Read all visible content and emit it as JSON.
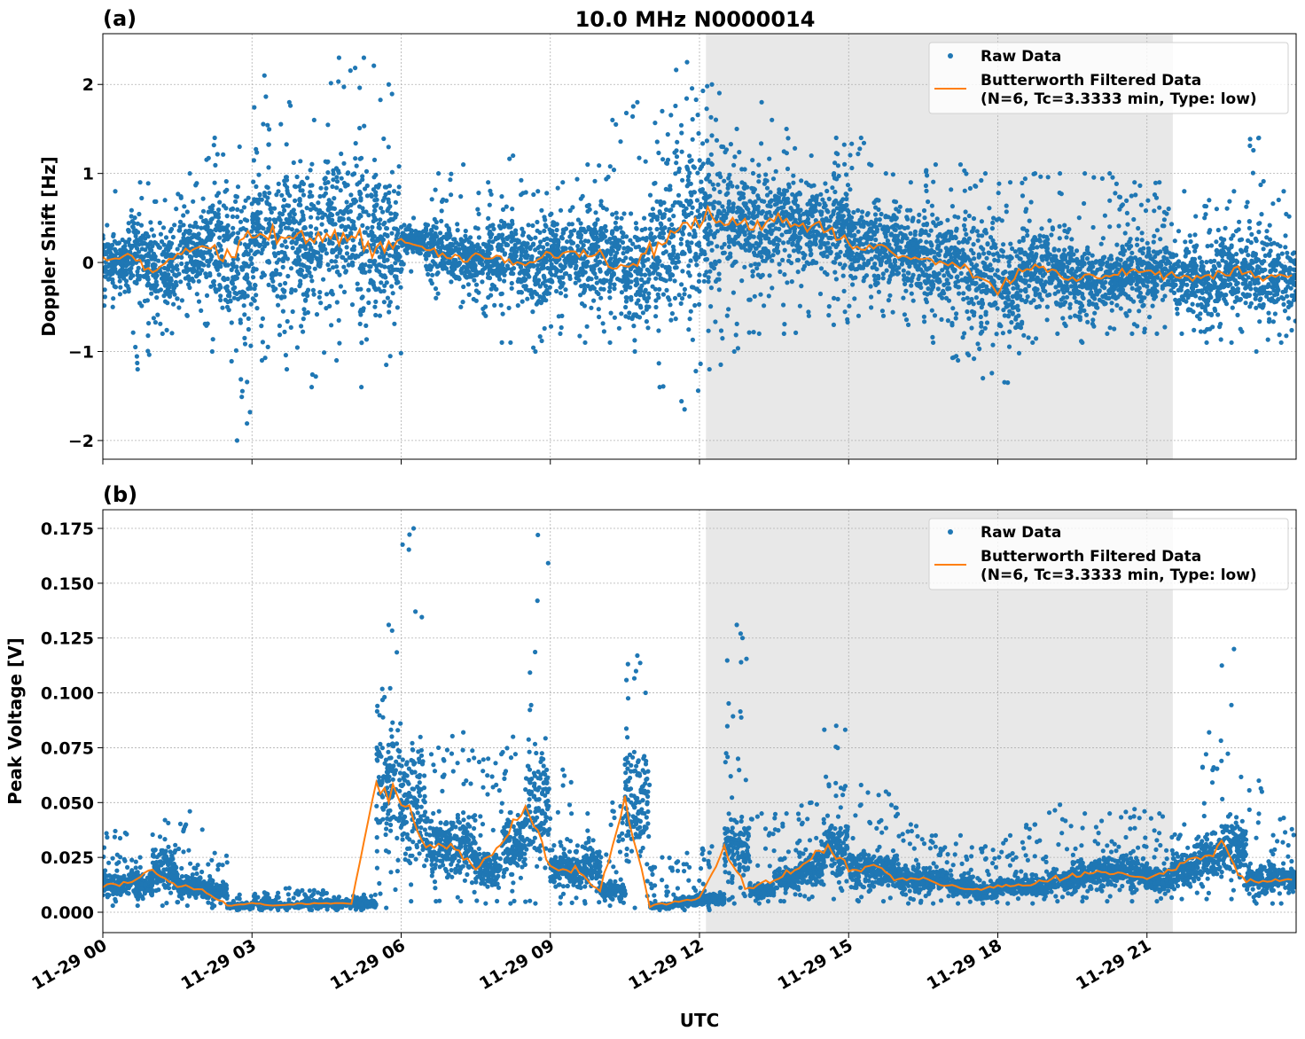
{
  "title": "10.0 MHz N0000014",
  "xlabel": "UTC",
  "x_tick_labels": [
    "11-29 00",
    "11-29 03",
    "11-29 06",
    "11-29 09",
    "11-29 12",
    "11-29 15",
    "11-29 18",
    "11-29 21"
  ],
  "colors": {
    "raw": "#1f77b4",
    "filtered": "#ff7f0e",
    "shade": "#e8e8e8"
  },
  "legend": {
    "raw": "Raw Data",
    "filtered_line1": "Butterworth Filtered Data",
    "filtered_line2": "(N=6, Tc=3.3333 min, Type: low)",
    "placement": "top-right"
  },
  "chart_data": [
    {
      "type": "scatter+line",
      "panel_label": "(a)",
      "ylabel": "Doppler Shift [Hz]",
      "x_unit": "hours UTC on 11-29",
      "xlim": [
        0,
        24
      ],
      "ylim": [
        -2.21,
        2.57
      ],
      "y_ticks": [
        -2,
        -1,
        0,
        1,
        2
      ],
      "y_tick_labels": [
        "−2",
        "−1",
        "0",
        "1",
        "2"
      ],
      "grid": true,
      "shaded_interval_hours": [
        12.13,
        21.52
      ],
      "bin_hours": [
        0,
        0.5,
        1,
        1.5,
        2,
        2.5,
        3,
        3.5,
        4,
        4.5,
        5,
        5.5,
        6,
        6.5,
        7,
        7.5,
        8,
        8.5,
        9,
        9.5,
        10,
        10.5,
        11,
        11.5,
        12,
        12.5,
        13,
        13.5,
        14,
        14.5,
        15,
        15.5,
        16,
        16.5,
        17,
        17.5,
        18,
        18.5,
        19,
        19.5,
        20,
        20.5,
        21,
        21.5,
        22,
        22.5,
        23,
        23.5
      ],
      "filtered": [
        0,
        0.1,
        -0.1,
        0.1,
        0.2,
        0,
        0.3,
        0.3,
        0.25,
        0.3,
        0.3,
        0.2,
        0.25,
        0.15,
        0.05,
        0.05,
        0.05,
        -0.05,
        0.1,
        0.1,
        0.1,
        -0.1,
        0.2,
        0.4,
        0.5,
        0.5,
        0.4,
        0.5,
        0.4,
        0.4,
        0.2,
        0.2,
        0.1,
        0.05,
        0,
        -0.1,
        -0.3,
        -0.05,
        -0.1,
        -0.2,
        -0.15,
        -0.1,
        -0.1,
        -0.15,
        -0.2,
        -0.1,
        -0.1,
        -0.15
      ],
      "raw_max": [
        0.8,
        0.9,
        0.7,
        1.0,
        1.4,
        1.3,
        2.1,
        1.8,
        1.6,
        2.3,
        2.3,
        2.0,
        0.5,
        1.0,
        1.1,
        0.9,
        1.2,
        0.8,
        0.9,
        1.1,
        1.6,
        1.8,
        1.7,
        2.25,
        2.0,
        1.5,
        1.8,
        1.5,
        1.2,
        1.4,
        1.4,
        1.0,
        0.9,
        1.1,
        1.1,
        1.0,
        0.9,
        1.0,
        1.0,
        1.0,
        1.0,
        0.9,
        0.9,
        0.8,
        0.7,
        0.8,
        1.4,
        0.8
      ],
      "raw_min": [
        -0.5,
        -1.2,
        -0.8,
        -0.6,
        -1.0,
        -2.0,
        -1.1,
        -1.2,
        -1.4,
        -1.1,
        -1.4,
        -1.15,
        -0.1,
        -0.4,
        -0.5,
        -0.6,
        -0.9,
        -1.0,
        -0.8,
        -0.9,
        -0.9,
        -1.0,
        -1.4,
        -1.65,
        -1.2,
        -1.0,
        -0.8,
        -0.8,
        -0.6,
        -0.7,
        -0.6,
        -0.6,
        -0.7,
        -0.9,
        -1.1,
        -1.3,
        -1.35,
        -0.9,
        -0.8,
        -0.9,
        -0.8,
        -0.8,
        -0.8,
        -0.8,
        -0.9,
        -0.9,
        -1.0,
        -0.9
      ]
    },
    {
      "type": "scatter+line",
      "panel_label": "(b)",
      "ylabel": "Peak Voltage [V]",
      "x_unit": "hours UTC on 11-29",
      "xlim": [
        0,
        24
      ],
      "ylim": [
        -0.0093,
        0.1835
      ],
      "y_ticks": [
        0,
        0.025,
        0.05,
        0.075,
        0.1,
        0.125,
        0.15,
        0.175
      ],
      "y_tick_labels": [
        "0.000",
        "0.025",
        "0.050",
        "0.075",
        "0.100",
        "0.125",
        "0.150",
        "0.175"
      ],
      "grid": true,
      "shaded_interval_hours": [
        12.13,
        21.52
      ],
      "bin_hours": [
        0,
        0.5,
        1,
        1.5,
        2,
        2.5,
        3,
        3.5,
        4,
        4.5,
        5,
        5.5,
        6,
        6.5,
        7,
        7.5,
        8,
        8.5,
        9,
        9.5,
        10,
        10.5,
        11,
        11.5,
        12,
        12.5,
        13,
        13.5,
        14,
        14.5,
        15,
        15.5,
        16,
        16.5,
        17,
        17.5,
        18,
        18.5,
        19,
        19.5,
        20,
        20.5,
        21,
        21.5,
        22,
        22.5,
        23,
        23.5
      ],
      "filtered": [
        0.012,
        0.013,
        0.02,
        0.012,
        0.01,
        0.003,
        0.004,
        0.003,
        0.004,
        0.004,
        0.004,
        0.06,
        0.05,
        0.03,
        0.03,
        0.02,
        0.03,
        0.05,
        0.02,
        0.02,
        0.01,
        0.05,
        0.003,
        0.005,
        0.006,
        0.03,
        0.01,
        0.015,
        0.02,
        0.03,
        0.02,
        0.02,
        0.015,
        0.015,
        0.012,
        0.01,
        0.012,
        0.012,
        0.015,
        0.017,
        0.018,
        0.018,
        0.015,
        0.02,
        0.025,
        0.03,
        0.015,
        0.015
      ],
      "raw_max": [
        0.037,
        0.025,
        0.042,
        0.046,
        0.027,
        0.008,
        0.009,
        0.011,
        0.01,
        0.007,
        0.008,
        0.131,
        0.175,
        0.075,
        0.082,
        0.07,
        0.08,
        0.172,
        0.065,
        0.045,
        0.05,
        0.117,
        0.025,
        0.027,
        0.03,
        0.131,
        0.045,
        0.045,
        0.05,
        0.085,
        0.058,
        0.055,
        0.04,
        0.035,
        0.035,
        0.03,
        0.035,
        0.04,
        0.049,
        0.045,
        0.045,
        0.047,
        0.045,
        0.04,
        0.082,
        0.12,
        0.06,
        0.043
      ],
      "raw_min": [
        0.003,
        0.003,
        0.003,
        0.003,
        0.002,
        0.001,
        0.001,
        0.001,
        0.001,
        0.001,
        0.001,
        0.002,
        0.005,
        0.005,
        0.005,
        0.004,
        0.004,
        0.004,
        0.004,
        0.004,
        0.003,
        0.002,
        0.001,
        0.001,
        0.001,
        0.004,
        0.004,
        0.005,
        0.006,
        0.006,
        0.005,
        0.005,
        0.004,
        0.004,
        0.004,
        0.004,
        0.004,
        0.004,
        0.005,
        0.005,
        0.005,
        0.005,
        0.005,
        0.006,
        0.006,
        0.006,
        0.004,
        0.004
      ]
    }
  ]
}
